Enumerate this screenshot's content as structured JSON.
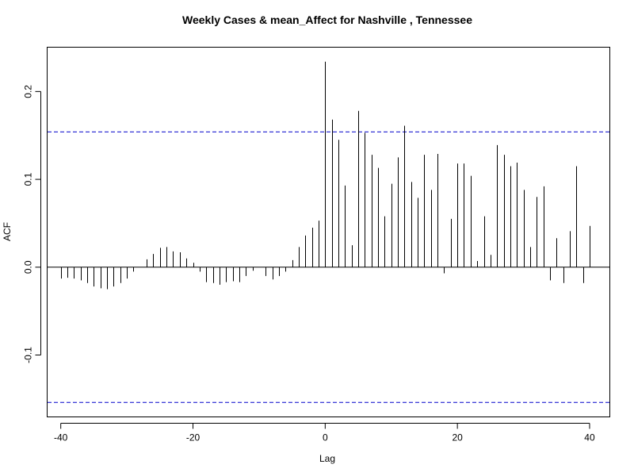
{
  "chart_data": {
    "type": "bar",
    "title": "Weekly Cases & mean_Affect for Nashville , Tennessee",
    "xlabel": "Lag",
    "ylabel": "ACF",
    "xlim": [
      -42,
      43
    ],
    "ylim": [
      -0.17,
      0.25
    ],
    "x_ticks": [
      -40,
      -20,
      0,
      20,
      40
    ],
    "x_tick_labels": [
      "-40",
      "-20",
      "0",
      "20",
      "40"
    ],
    "y_ticks": [
      -0.1,
      0.0,
      0.1,
      0.2
    ],
    "y_tick_labels": [
      "-0.1",
      "0.0",
      "0.1",
      "0.2"
    ],
    "confidence_bound": 0.154,
    "zero_line": true,
    "grid": false,
    "colors": {
      "bars": "#000000",
      "bounds": "#0000cc",
      "zero_line": "#000000"
    },
    "lags": [
      -40,
      -39,
      -38,
      -37,
      -36,
      -35,
      -34,
      -33,
      -32,
      -31,
      -30,
      -29,
      -28,
      -27,
      -26,
      -25,
      -24,
      -23,
      -22,
      -21,
      -20,
      -19,
      -18,
      -17,
      -16,
      -15,
      -14,
      -13,
      -12,
      -11,
      -10,
      -9,
      -8,
      -7,
      -6,
      -5,
      -4,
      -3,
      -2,
      -1,
      0,
      1,
      2,
      3,
      4,
      5,
      6,
      7,
      8,
      9,
      10,
      11,
      12,
      13,
      14,
      15,
      16,
      17,
      18,
      19,
      20,
      21,
      22,
      23,
      24,
      25,
      26,
      27,
      28,
      29,
      30,
      31,
      32,
      33,
      34,
      35,
      36,
      37,
      38,
      39,
      40
    ],
    "values": [
      -0.013,
      -0.012,
      -0.013,
      -0.015,
      -0.018,
      -0.022,
      -0.024,
      -0.025,
      -0.022,
      -0.018,
      -0.013,
      -0.005,
      0.0,
      0.009,
      0.015,
      0.022,
      0.023,
      0.018,
      0.017,
      0.01,
      0.005,
      -0.005,
      -0.017,
      -0.018,
      -0.02,
      -0.017,
      -0.016,
      -0.017,
      -0.01,
      -0.004,
      0.0,
      -0.01,
      -0.014,
      -0.01,
      -0.005,
      0.008,
      0.023,
      0.036,
      0.045,
      0.053,
      0.234,
      0.168,
      0.145,
      0.093,
      0.025,
      0.178,
      0.153,
      0.128,
      0.113,
      0.058,
      0.095,
      0.125,
      0.161,
      0.097,
      0.079,
      0.128,
      0.088,
      0.129,
      -0.007,
      0.055,
      0.118,
      0.118,
      0.104,
      0.007,
      0.058,
      0.014,
      0.139,
      0.128,
      0.115,
      0.119,
      0.088,
      0.023,
      0.08,
      0.092,
      -0.015,
      0.033,
      -0.018,
      0.041,
      0.115,
      -0.018,
      0.047
    ]
  }
}
